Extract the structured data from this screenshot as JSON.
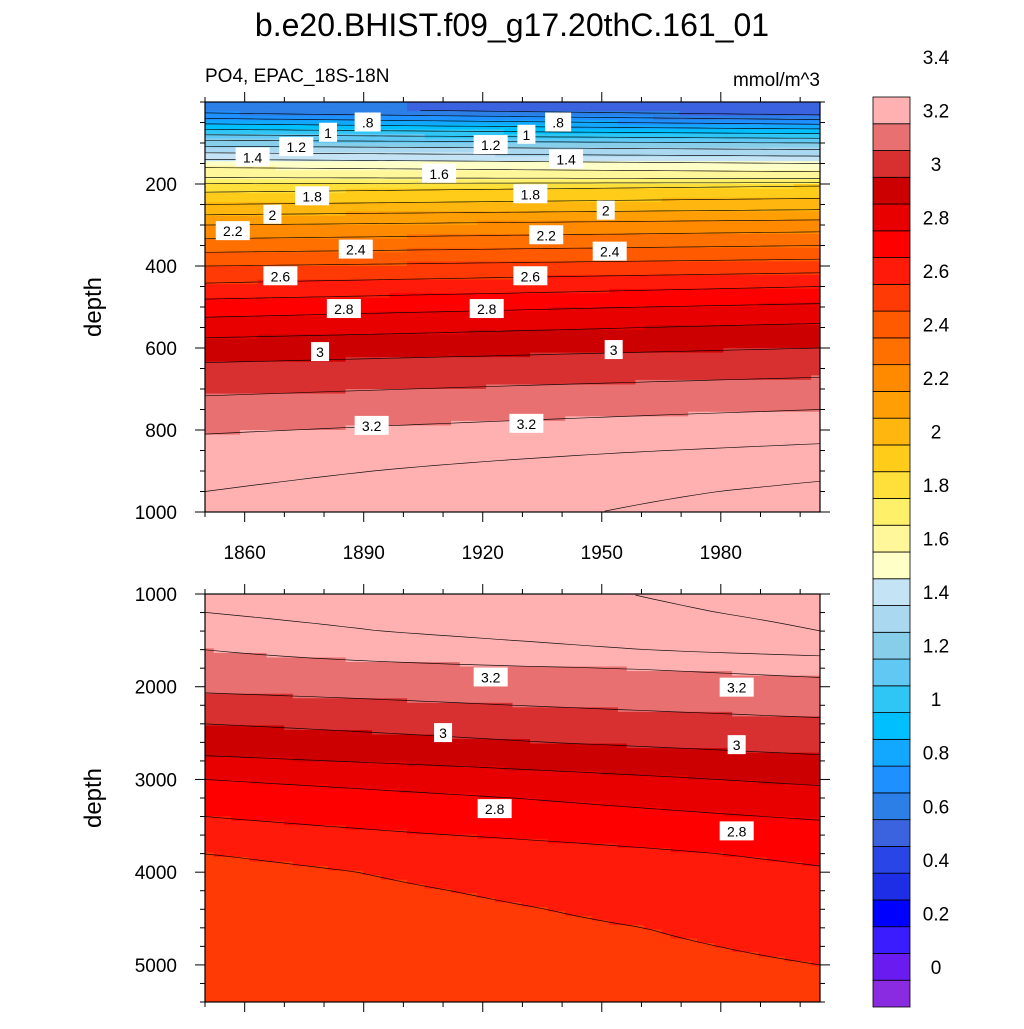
{
  "chart_data": {
    "type": "heatmap",
    "title": "b.e20.BHIST.f09_g17.20thC.161_01",
    "variable_label": "PO4, EPAC_18S-18N",
    "units_label": "mmol/m^3",
    "ylabel": "depth",
    "x_ticks": [
      "1860",
      "1890",
      "1920",
      "1950",
      "1980"
    ],
    "x_tick_values": [
      1860,
      1890,
      1920,
      1950,
      1980
    ],
    "xlim": [
      1850,
      2005
    ],
    "colorbar": {
      "colors": [
        "#8a2be2",
        "#6a1cf0",
        "#3a1cff",
        "#0000ff",
        "#1e2ee6",
        "#2a45e6",
        "#3b63e0",
        "#2b7fe6",
        "#1e90ff",
        "#13a8ff",
        "#00bfff",
        "#2fc6f5",
        "#60c8f2",
        "#87ceeb",
        "#a9d8f0",
        "#c4e4f5",
        "#ffffc8",
        "#fff79a",
        "#fff06a",
        "#ffe03a",
        "#ffcc1a",
        "#ffb60e",
        "#ff9f05",
        "#ff8a00",
        "#ff7000",
        "#ff5a00",
        "#ff3a05",
        "#ff1a0a",
        "#ff0000",
        "#e80000",
        "#cc0000",
        "#d83030",
        "#e87070",
        "#ffb0b0"
      ],
      "tick_labels": [
        "0",
        "0.2",
        "0.4",
        "0.6",
        "0.8",
        "1",
        "1.2",
        "1.4",
        "1.6",
        "1.8",
        "2",
        "2.2",
        "2.4",
        "2.6",
        "2.8",
        "3",
        "3.2",
        "3.4"
      ],
      "tick_values": [
        0,
        0.2,
        0.4,
        0.6,
        0.8,
        1,
        1.2,
        1.4,
        1.6,
        1.8,
        2,
        2.2,
        2.4,
        2.6,
        2.8,
        3,
        3.2,
        3.4
      ],
      "min": -0.1,
      "step": 0.1
    },
    "panels": [
      {
        "name": "upper",
        "ylim": [
          0,
          1000
        ],
        "y_inverted": true,
        "y_ticks": [
          "200",
          "400",
          "600",
          "800",
          "1000"
        ],
        "y_tick_values": [
          200,
          400,
          600,
          800,
          1000
        ],
        "x_labels_shown": true,
        "depth_profile": {
          "depths": [
            20,
            60,
            100,
            140,
            170,
            190,
            205,
            250,
            300,
            350,
            400,
            450,
            500,
            550,
            600,
            650,
            700,
            750,
            800,
            850,
            900,
            950,
            1000
          ],
          "start_values": [
            0.65,
            0.95,
            1.25,
            1.5,
            1.65,
            1.72,
            1.85,
            2.0,
            2.2,
            2.35,
            2.5,
            2.62,
            2.75,
            2.85,
            2.95,
            3.02,
            3.08,
            3.14,
            3.19,
            3.24,
            3.27,
            3.3,
            3.31
          ],
          "end_values": [
            0.5,
            0.85,
            1.2,
            1.45,
            1.6,
            1.72,
            1.9,
            2.05,
            2.25,
            2.4,
            2.55,
            2.7,
            2.82,
            2.92,
            3.0,
            3.07,
            3.14,
            3.2,
            3.26,
            3.32,
            3.38,
            3.42,
            3.45
          ]
        },
        "contour_labels": [
          {
            "text": ".8",
            "x": 1891,
            "y": 50
          },
          {
            "text": ".8",
            "x": 1939,
            "y": 50
          },
          {
            "text": "1",
            "x": 1881,
            "y": 75
          },
          {
            "text": "1",
            "x": 1931,
            "y": 80
          },
          {
            "text": "1.2",
            "x": 1873,
            "y": 110
          },
          {
            "text": "1.2",
            "x": 1922,
            "y": 105
          },
          {
            "text": "1.4",
            "x": 1862,
            "y": 135
          },
          {
            "text": "1.4",
            "x": 1941,
            "y": 140
          },
          {
            "text": "1.6",
            "x": 1909,
            "y": 175
          },
          {
            "text": "1.8",
            "x": 1877,
            "y": 230
          },
          {
            "text": "1.8",
            "x": 1932,
            "y": 225
          },
          {
            "text": "2",
            "x": 1867,
            "y": 275
          },
          {
            "text": "2",
            "x": 1951,
            "y": 265
          },
          {
            "text": "2.2",
            "x": 1857,
            "y": 315
          },
          {
            "text": "2.2",
            "x": 1936,
            "y": 325
          },
          {
            "text": "2.4",
            "x": 1888,
            "y": 360
          },
          {
            "text": "2.4",
            "x": 1952,
            "y": 365
          },
          {
            "text": "2.6",
            "x": 1869,
            "y": 425
          },
          {
            "text": "2.6",
            "x": 1932,
            "y": 425
          },
          {
            "text": "2.8",
            "x": 1885,
            "y": 505
          },
          {
            "text": "2.8",
            "x": 1921,
            "y": 505
          },
          {
            "text": "3",
            "x": 1879,
            "y": 610
          },
          {
            "text": "3",
            "x": 1953,
            "y": 605
          },
          {
            "text": "3.2",
            "x": 1892,
            "y": 790
          },
          {
            "text": "3.2",
            "x": 1931,
            "y": 785
          }
        ]
      },
      {
        "name": "lower",
        "ylim": [
          1000,
          5400
        ],
        "y_inverted": true,
        "y_ticks": [
          "1000",
          "2000",
          "3000",
          "4000",
          "5000"
        ],
        "y_tick_values": [
          1000,
          2000,
          3000,
          4000,
          5000
        ],
        "x_labels_shown": false,
        "depth_profile": {
          "depths": [
            1000,
            1200,
            1400,
            1600,
            1800,
            2000,
            2200,
            2400,
            2600,
            2800,
            3000,
            3200,
            3400,
            3600,
            3800,
            4000,
            4200,
            4400,
            4600,
            4800,
            5000,
            5200,
            5400
          ],
          "start_values": [
            3.31,
            3.3,
            3.26,
            3.2,
            3.16,
            3.12,
            3.06,
            3.0,
            2.95,
            2.88,
            2.8,
            2.74,
            2.7,
            2.66,
            2.6,
            2.57,
            2.56,
            2.55,
            2.55,
            2.55,
            2.55,
            2.55,
            2.55
          ],
          "end_values": [
            3.44,
            3.42,
            3.4,
            3.34,
            3.22,
            3.18,
            3.14,
            3.08,
            3.04,
            2.98,
            2.92,
            2.86,
            2.81,
            2.76,
            2.72,
            2.69,
            2.66,
            2.64,
            2.62,
            2.61,
            2.6,
            2.59,
            2.58
          ]
        },
        "contour_labels": [
          {
            "text": "3.2",
            "x": 1922,
            "y": 1900
          },
          {
            "text": "3.2",
            "x": 1984,
            "y": 2010
          },
          {
            "text": "3",
            "x": 1910,
            "y": 2500
          },
          {
            "text": "3",
            "x": 1984,
            "y": 2630
          },
          {
            "text": "2.8",
            "x": 1923,
            "y": 3320
          },
          {
            "text": "2.8",
            "x": 1984,
            "y": 3560
          }
        ]
      }
    ]
  }
}
